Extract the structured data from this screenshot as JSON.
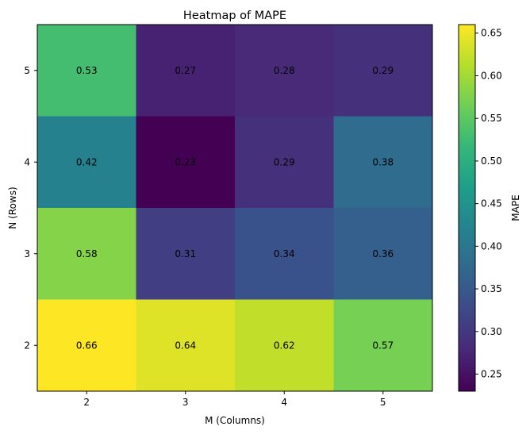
{
  "chart_data": {
    "type": "heatmap",
    "title": "Heatmap of MAPE",
    "xlabel": "M (Columns)",
    "ylabel": "N (Rows)",
    "x_categories": [
      "2",
      "3",
      "4",
      "5"
    ],
    "y_categories": [
      "5",
      "4",
      "3",
      "2"
    ],
    "values": [
      [
        0.53,
        0.27,
        0.28,
        0.29
      ],
      [
        0.42,
        0.23,
        0.29,
        0.38
      ],
      [
        0.58,
        0.31,
        0.34,
        0.36
      ],
      [
        0.66,
        0.64,
        0.62,
        0.57
      ]
    ],
    "labels": [
      [
        "0.53",
        "0.27",
        "0.28",
        "0.29"
      ],
      [
        "0.42",
        "0.23",
        "0.29",
        "0.38"
      ],
      [
        "0.58",
        "0.31",
        "0.34",
        "0.36"
      ],
      [
        "0.66",
        "0.64",
        "0.62",
        "0.57"
      ]
    ],
    "colormap": "viridis",
    "colorbar": {
      "label": "MAPE",
      "range": [
        0.23,
        0.66
      ],
      "ticks": [
        0.25,
        0.3,
        0.35,
        0.4,
        0.45,
        0.5,
        0.55,
        0.6,
        0.65
      ],
      "tick_labels": [
        "0.25",
        "0.30",
        "0.35",
        "0.40",
        "0.45",
        "0.50",
        "0.55",
        "0.60",
        "0.65"
      ]
    },
    "grid": false
  }
}
